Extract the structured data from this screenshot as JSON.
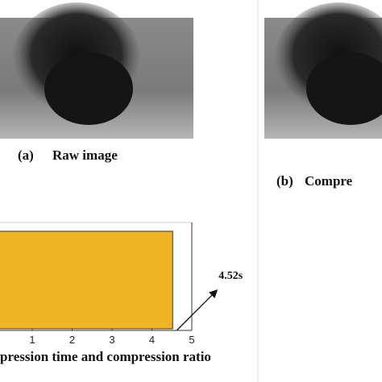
{
  "panels": [
    {
      "label": "(a)",
      "caption": "Raw image"
    },
    {
      "label": "(b)",
      "caption": "Compre"
    }
  ],
  "chart_data": {
    "type": "bar",
    "orientation": "horizontal",
    "categories": [
      null
    ],
    "values": [
      4.52
    ],
    "value_labels": [
      "4.52s"
    ],
    "color": "#f0b323",
    "xlim": [
      0,
      5
    ],
    "xticks": [
      1,
      2,
      3,
      4,
      5
    ],
    "caption": "pression time and compression ratio"
  }
}
